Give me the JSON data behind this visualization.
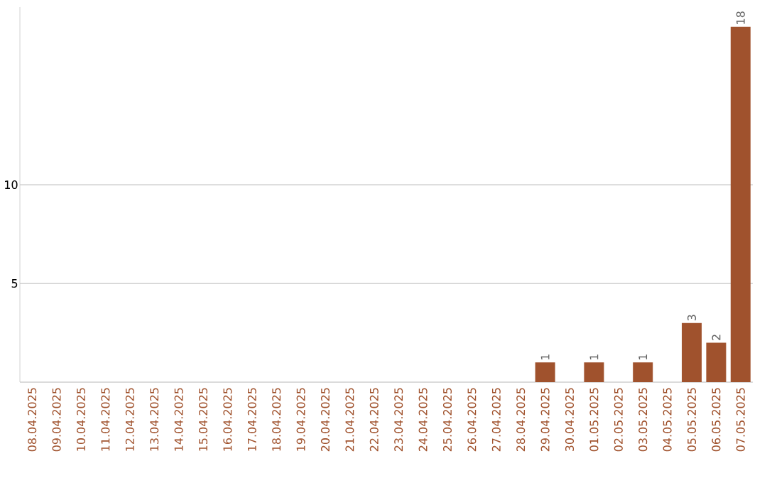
{
  "chart_data": {
    "type": "bar",
    "categories": [
      "08.04.2025",
      "09.04.2025",
      "10.04.2025",
      "11.04.2025",
      "12.04.2025",
      "13.04.2025",
      "14.04.2025",
      "15.04.2025",
      "16.04.2025",
      "17.04.2025",
      "18.04.2025",
      "19.04.2025",
      "20.04.2025",
      "21.04.2025",
      "22.04.2025",
      "23.04.2025",
      "24.04.2025",
      "25.04.2025",
      "26.04.2025",
      "27.04.2025",
      "28.04.2025",
      "29.04.2025",
      "30.04.2025",
      "01.05.2025",
      "02.05.2025",
      "03.05.2025",
      "04.05.2025",
      "05.05.2025",
      "06.05.2025",
      "07.05.2025"
    ],
    "values": [
      0,
      0,
      0,
      0,
      0,
      0,
      0,
      0,
      0,
      0,
      0,
      0,
      0,
      0,
      0,
      0,
      0,
      0,
      0,
      0,
      0,
      1,
      0,
      1,
      0,
      1,
      0,
      3,
      2,
      18
    ],
    "value_labels": [
      null,
      null,
      null,
      null,
      null,
      null,
      null,
      null,
      null,
      null,
      null,
      null,
      null,
      null,
      null,
      null,
      null,
      null,
      null,
      null,
      null,
      "1",
      null,
      "1",
      null,
      "1",
      null,
      "3",
      "2",
      "18"
    ],
    "color": "#a0522d",
    "ylim": [
      0,
      19
    ],
    "yticks": [
      5,
      10
    ],
    "grid": "y"
  }
}
